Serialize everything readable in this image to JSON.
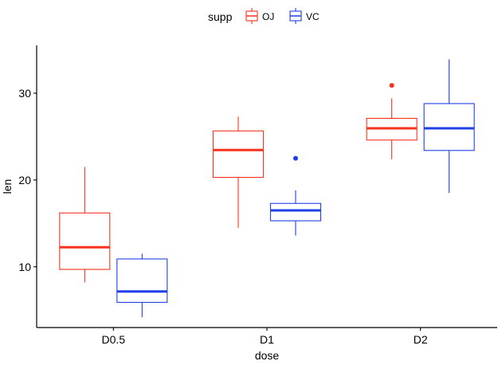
{
  "chart_data": {
    "type": "boxplot",
    "title": "",
    "xlabel": "dose",
    "ylabel": "len",
    "categories": [
      "D0.5",
      "D1",
      "D2"
    ],
    "yticks": [
      10,
      20,
      30
    ],
    "ylim": [
      3,
      35.5
    ],
    "grid": false,
    "legend": {
      "title": "supp",
      "position": "top",
      "entries": [
        "OJ",
        "VC"
      ]
    },
    "series": [
      {
        "name": "OJ",
        "color": "#f8321e",
        "boxes": [
          {
            "category": "D0.5",
            "whisker_low": 8.2,
            "q1": 9.7,
            "median": 12.25,
            "q3": 16.2,
            "whisker_high": 21.5,
            "outliers": []
          },
          {
            "category": "D1",
            "whisker_low": 14.5,
            "q1": 20.3,
            "median": 23.45,
            "q3": 25.65,
            "whisker_high": 27.3,
            "outliers": []
          },
          {
            "category": "D2",
            "whisker_low": 22.4,
            "q1": 24.6,
            "median": 25.95,
            "q3": 27.1,
            "whisker_high": 29.4,
            "outliers": [
              30.9
            ]
          }
        ]
      },
      {
        "name": "VC",
        "color": "#1f3fe8",
        "boxes": [
          {
            "category": "D0.5",
            "whisker_low": 4.2,
            "q1": 5.9,
            "median": 7.15,
            "q3": 10.9,
            "whisker_high": 11.5,
            "outliers": []
          },
          {
            "category": "D1",
            "whisker_low": 13.6,
            "q1": 15.3,
            "median": 16.5,
            "q3": 17.3,
            "whisker_high": 18.8,
            "outliers": [
              22.5
            ]
          },
          {
            "category": "D2",
            "whisker_low": 18.5,
            "q1": 23.4,
            "median": 25.95,
            "q3": 28.8,
            "whisker_high": 33.9,
            "outliers": []
          }
        ]
      }
    ]
  }
}
